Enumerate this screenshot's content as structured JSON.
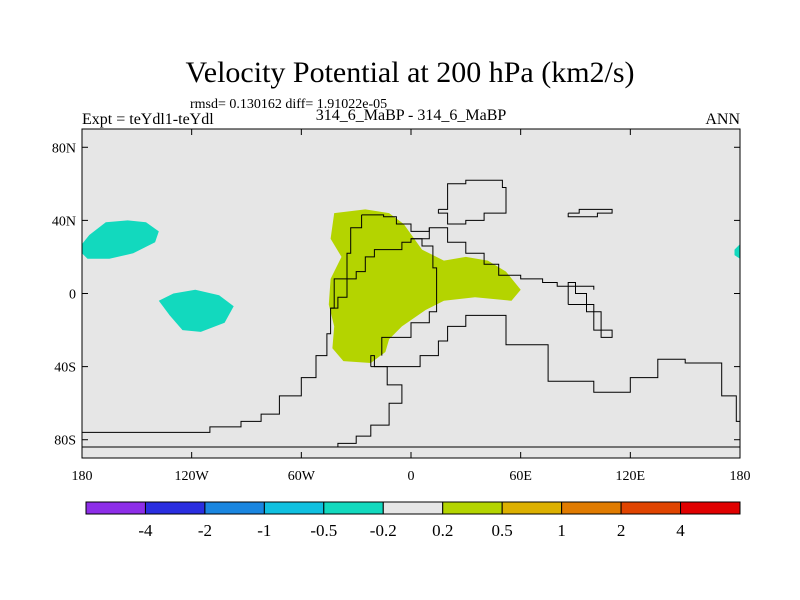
{
  "chart_data": {
    "type": "heatmap",
    "title": "Velocity Potential at 200 hPa (km2/s)",
    "stats_text": "rmsd= 0.130162 diff= 1.91022e-05",
    "left_label": "Expt = teYdl1-teYdl",
    "center_label": "314_6_MaBP - 314_6_MaBP",
    "right_label": "ANN",
    "xlim": [
      -180,
      180
    ],
    "ylim": [
      -90,
      90
    ],
    "x_ticks": [
      {
        "value": -180,
        "label": "180"
      },
      {
        "value": -120,
        "label": "120W"
      },
      {
        "value": -60,
        "label": "60W"
      },
      {
        "value": 0,
        "label": "0"
      },
      {
        "value": 60,
        "label": "60E"
      },
      {
        "value": 120,
        "label": "120E"
      },
      {
        "value": 180,
        "label": "180"
      }
    ],
    "y_ticks": [
      {
        "value": 80,
        "label": "80N"
      },
      {
        "value": 40,
        "label": "40N"
      },
      {
        "value": 0,
        "label": "0"
      },
      {
        "value": -40,
        "label": "40S"
      },
      {
        "value": -80,
        "label": "80S"
      }
    ],
    "background_color": "#e6e6e6",
    "regions": [
      {
        "name": "positive anomaly 0.2 to 0.5 (Atlantic / Africa)",
        "bin": "0.2 to 0.5",
        "color": "#b4d400",
        "points": [
          [
            -42,
            44
          ],
          [
            -25,
            46
          ],
          [
            -12,
            44
          ],
          [
            -4,
            38
          ],
          [
            6,
            24
          ],
          [
            18,
            18
          ],
          [
            30,
            20
          ],
          [
            42,
            18
          ],
          [
            52,
            12
          ],
          [
            60,
            2
          ],
          [
            55,
            -4
          ],
          [
            35,
            -2
          ],
          [
            18,
            -4
          ],
          [
            8,
            -9
          ],
          [
            -5,
            -18
          ],
          [
            -12,
            -25
          ],
          [
            -14,
            -32
          ],
          [
            -22,
            -38
          ],
          [
            -37,
            -37
          ],
          [
            -43,
            -30
          ],
          [
            -42,
            -18
          ],
          [
            -45,
            -6
          ],
          [
            -44,
            8
          ],
          [
            -38,
            20
          ],
          [
            -44,
            30
          ]
        ]
      },
      {
        "name": "negative anomaly -0.5 to -0.2 (North Pacific)",
        "bin": "-0.5 to -0.2",
        "color": "#12d9be",
        "points": [
          [
            -180,
            27
          ],
          [
            -176,
            32
          ],
          [
            -167,
            39
          ],
          [
            -155,
            40
          ],
          [
            -145,
            39
          ],
          [
            -138,
            34
          ],
          [
            -140,
            28
          ],
          [
            -152,
            22
          ],
          [
            -165,
            19
          ],
          [
            -177,
            19
          ],
          [
            -180,
            22
          ]
        ]
      },
      {
        "name": "negative anomaly -0.5 to -0.2 (tropical Pacific)",
        "bin": "-0.5 to -0.2",
        "color": "#12d9be",
        "points": [
          [
            -138,
            -4
          ],
          [
            -130,
            0
          ],
          [
            -118,
            2
          ],
          [
            -105,
            -1
          ],
          [
            -97,
            -7
          ],
          [
            -102,
            -16
          ],
          [
            -115,
            -21
          ],
          [
            -125,
            -20
          ],
          [
            -132,
            -12
          ]
        ]
      },
      {
        "name": "negative anomaly -0.5 to -0.2 (east edge)",
        "bin": "-0.5 to -0.2",
        "color": "#12d9be",
        "points": [
          [
            180,
            27
          ],
          [
            177,
            24
          ],
          [
            177,
            21
          ],
          [
            180,
            19
          ]
        ]
      }
    ],
    "outlines": [
      {
        "name": "America coastline",
        "points": [
          [
            -180,
            -76
          ],
          [
            -120,
            -76
          ],
          [
            -110,
            -73
          ],
          [
            -93,
            -70
          ],
          [
            -82,
            -66
          ],
          [
            -72,
            -56
          ],
          [
            -60,
            -46
          ],
          [
            -52,
            -34
          ],
          [
            -46,
            -22
          ],
          [
            -44,
            -8
          ],
          [
            -42,
            8
          ],
          [
            -35,
            22
          ],
          [
            -33,
            36
          ],
          [
            -27,
            43
          ]
        ]
      },
      {
        "name": "Antarctic coast",
        "points": [
          [
            -180,
            -84
          ],
          [
            -62,
            -84
          ],
          [
            -40,
            -82
          ],
          [
            -30,
            -78
          ],
          [
            -22,
            -72
          ],
          [
            -12,
            -60
          ],
          [
            -5,
            -50
          ],
          [
            -13,
            -40
          ],
          [
            -20,
            -34
          ],
          [
            -22,
            -40
          ]
        ]
      },
      {
        "name": "Greenland / Europe",
        "points": [
          [
            -27,
            43
          ],
          [
            -15,
            42
          ],
          [
            -8,
            38
          ],
          [
            0,
            34
          ],
          [
            10,
            36
          ],
          [
            20,
            28
          ],
          [
            30,
            22
          ],
          [
            40,
            16
          ],
          [
            48,
            10
          ],
          [
            60,
            8
          ],
          [
            72,
            6
          ],
          [
            80,
            4
          ],
          [
            88,
            4
          ],
          [
            100,
            2
          ]
        ]
      },
      {
        "name": "Eurasia / Arctic",
        "points": [
          [
            15,
            46
          ],
          [
            20,
            60
          ],
          [
            30,
            62
          ],
          [
            50,
            58
          ],
          [
            52,
            44
          ],
          [
            40,
            40
          ],
          [
            30,
            38
          ],
          [
            20,
            44
          ],
          [
            15,
            46
          ]
        ]
      },
      {
        "name": "Africa east coast",
        "points": [
          [
            -22,
            -40
          ],
          [
            -5,
            -40
          ],
          [
            5,
            -34
          ],
          [
            15,
            -26
          ],
          [
            20,
            -18
          ],
          [
            30,
            -12
          ],
          [
            52,
            -28
          ],
          [
            75,
            -48
          ],
          [
            100,
            -54
          ],
          [
            120,
            -46
          ],
          [
            135,
            -36
          ],
          [
            150,
            -38
          ],
          [
            170,
            -56
          ],
          [
            178,
            -70
          ],
          [
            180,
            -76
          ]
        ]
      },
      {
        "name": "Western Africa",
        "points": [
          [
            -44,
            -8
          ],
          [
            -40,
            -2
          ],
          [
            -35,
            8
          ],
          [
            -30,
            12
          ],
          [
            -25,
            20
          ],
          [
            -20,
            24
          ],
          [
            -12,
            24
          ],
          [
            -5,
            28
          ],
          [
            0,
            30
          ],
          [
            10,
            36
          ]
        ]
      },
      {
        "name": "Arabia / Indian coast",
        "points": [
          [
            0,
            30
          ],
          [
            6,
            26
          ],
          [
            12,
            14
          ],
          [
            14,
            2
          ],
          [
            14,
            -10
          ],
          [
            10,
            -16
          ],
          [
            0,
            -24
          ],
          [
            -10,
            -24
          ],
          [
            -16,
            -34
          ]
        ]
      },
      {
        "name": "Asia east fragment",
        "points": [
          [
            86,
            -6
          ],
          [
            94,
            -6
          ],
          [
            100,
            -20
          ],
          [
            110,
            -24
          ],
          [
            104,
            -10
          ],
          [
            96,
            0
          ],
          [
            90,
            6
          ],
          [
            86,
            -6
          ]
        ]
      },
      {
        "name": "Scandinavia fragment",
        "points": [
          [
            86,
            44
          ],
          [
            92,
            46
          ],
          [
            104,
            46
          ],
          [
            110,
            44
          ],
          [
            102,
            42
          ],
          [
            94,
            42
          ],
          [
            86,
            44
          ]
        ]
      },
      {
        "name": "Bottom coastline",
        "points": [
          [
            -180,
            -84
          ],
          [
            180,
            -84
          ]
        ]
      }
    ],
    "colorbar": {
      "colors": [
        "#8d2ee8",
        "#2a2ee0",
        "#1a86e0",
        "#10c0e0",
        "#12d9be",
        "#e6e6e6",
        "#b4d400",
        "#dcb000",
        "#e07b00",
        "#e04400",
        "#e00000"
      ],
      "labels": [
        "-4",
        "-2",
        "-1",
        "-0.5",
        "-0.2",
        "0.2",
        "0.5",
        "1",
        "2",
        "4"
      ]
    }
  }
}
